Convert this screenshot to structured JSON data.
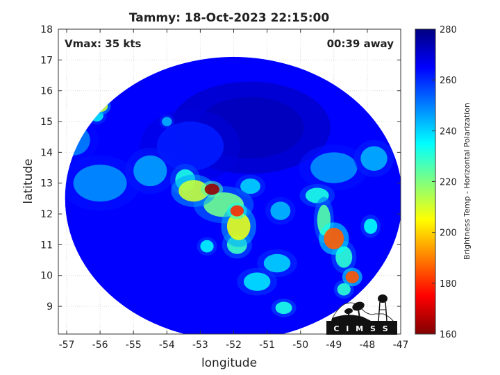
{
  "chart_data": {
    "type": "heatmap",
    "title": "Tammy: 18-Oct-2023 22:15:00",
    "xlabel": "longitude",
    "ylabel": "latitude",
    "xlim": [
      -57.25,
      -47
    ],
    "ylim": [
      8.1,
      18
    ],
    "xticks": [
      -57,
      -56,
      -55,
      -54,
      -53,
      -52,
      -51,
      -50,
      -49,
      -48,
      -47
    ],
    "yticks": [
      9,
      10,
      11,
      12,
      13,
      14,
      15,
      16,
      17,
      18
    ],
    "grid": true,
    "annotations": {
      "vmax": "Vmax: 35 kts",
      "time_away": "00:39 away"
    },
    "colorbar": {
      "label": "Brightness Temp - Horizontal Polarization",
      "range": [
        160,
        280
      ],
      "ticks": [
        160,
        180,
        200,
        220,
        240,
        260,
        280
      ],
      "colormap": "jet"
    },
    "swath": {
      "center_lon": -52.0,
      "center_lat": 12.5,
      "radius_lon": 5.05,
      "radius_lat": 4.6
    },
    "background_value": 265,
    "features": [
      {
        "lon": -52.65,
        "lat": 12.8,
        "value": 163,
        "spread_lon": 0.22,
        "spread_lat": 0.18
      },
      {
        "lon": -53.2,
        "lat": 12.75,
        "value": 212,
        "spread_lon": 0.45,
        "spread_lat": 0.35
      },
      {
        "lon": -52.3,
        "lat": 12.3,
        "value": 222,
        "spread_lon": 0.6,
        "spread_lat": 0.4
      },
      {
        "lon": -51.9,
        "lat": 12.1,
        "value": 180,
        "spread_lon": 0.2,
        "spread_lat": 0.18
      },
      {
        "lon": -51.85,
        "lat": 11.6,
        "value": 208,
        "spread_lon": 0.35,
        "spread_lat": 0.45
      },
      {
        "lon": -51.9,
        "lat": 11.0,
        "value": 228,
        "spread_lon": 0.3,
        "spread_lat": 0.3
      },
      {
        "lon": -53.45,
        "lat": 13.1,
        "value": 232,
        "spread_lon": 0.3,
        "spread_lat": 0.35
      },
      {
        "lon": -52.8,
        "lat": 10.95,
        "value": 236,
        "spread_lon": 0.2,
        "spread_lat": 0.2
      },
      {
        "lon": -49.0,
        "lat": 11.2,
        "value": 186,
        "spread_lon": 0.3,
        "spread_lat": 0.35
      },
      {
        "lon": -49.3,
        "lat": 11.8,
        "value": 225,
        "spread_lon": 0.2,
        "spread_lat": 0.5
      },
      {
        "lon": -49.5,
        "lat": 12.6,
        "value": 232,
        "spread_lon": 0.35,
        "spread_lat": 0.25
      },
      {
        "lon": -48.7,
        "lat": 10.6,
        "value": 230,
        "spread_lon": 0.25,
        "spread_lat": 0.35
      },
      {
        "lon": -48.45,
        "lat": 9.95,
        "value": 185,
        "spread_lon": 0.2,
        "spread_lat": 0.2
      },
      {
        "lon": -48.7,
        "lat": 9.55,
        "value": 230,
        "spread_lon": 0.2,
        "spread_lat": 0.2
      },
      {
        "lon": -47.9,
        "lat": 11.6,
        "value": 235,
        "spread_lon": 0.2,
        "spread_lat": 0.25
      },
      {
        "lon": -51.3,
        "lat": 9.8,
        "value": 238,
        "spread_lon": 0.4,
        "spread_lat": 0.3
      },
      {
        "lon": -50.5,
        "lat": 8.95,
        "value": 232,
        "spread_lon": 0.25,
        "spread_lat": 0.2
      },
      {
        "lon": -50.7,
        "lat": 10.4,
        "value": 240,
        "spread_lon": 0.4,
        "spread_lat": 0.3
      },
      {
        "lon": -55.95,
        "lat": 15.5,
        "value": 212,
        "spread_lon": 0.18,
        "spread_lat": 0.18
      },
      {
        "lon": -56.1,
        "lat": 15.2,
        "value": 238,
        "spread_lon": 0.2,
        "spread_lat": 0.2
      },
      {
        "lon": -54.0,
        "lat": 15.0,
        "value": 244,
        "spread_lon": 0.15,
        "spread_lat": 0.15
      },
      {
        "lon": -51.5,
        "lat": 12.9,
        "value": 240,
        "spread_lon": 0.3,
        "spread_lat": 0.25
      },
      {
        "lon": -50.6,
        "lat": 12.1,
        "value": 243,
        "spread_lon": 0.3,
        "spread_lat": 0.3
      },
      {
        "lon": -54.5,
        "lat": 13.4,
        "value": 246,
        "spread_lon": 0.5,
        "spread_lat": 0.5
      },
      {
        "lon": -56.0,
        "lat": 13.0,
        "value": 248,
        "spread_lon": 0.8,
        "spread_lat": 0.6
      },
      {
        "lon": -49.0,
        "lat": 13.5,
        "value": 248,
        "spread_lon": 0.7,
        "spread_lat": 0.5
      },
      {
        "lon": -47.8,
        "lat": 13.8,
        "value": 244,
        "spread_lon": 0.4,
        "spread_lat": 0.4
      },
      {
        "lon": -56.8,
        "lat": 14.4,
        "value": 250,
        "spread_lon": 0.5,
        "spread_lat": 0.5
      },
      {
        "lon": -53.3,
        "lat": 14.2,
        "value": 262,
        "spread_lon": 1.0,
        "spread_lat": 0.8
      },
      {
        "lon": -51.5,
        "lat": 14.8,
        "value": 273,
        "spread_lon": 1.6,
        "spread_lat": 1.0
      }
    ]
  },
  "logo": {
    "text": "C I M S S"
  }
}
